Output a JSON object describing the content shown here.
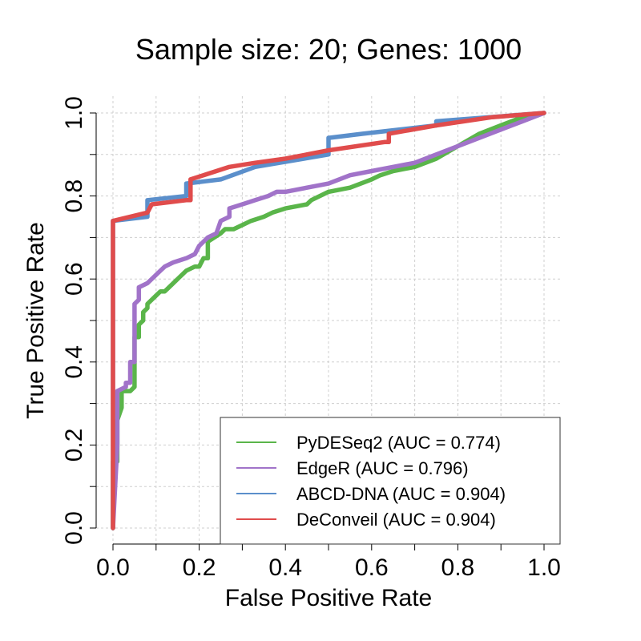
{
  "chart_data": {
    "type": "line",
    "title": "Sample size: 20; Genes: 1000",
    "xlabel": "False Positive Rate",
    "ylabel": "True Positive Rate",
    "xlim": [
      0,
      1
    ],
    "ylim": [
      0,
      1
    ],
    "xticks": [
      0.0,
      0.2,
      0.4,
      0.6,
      0.8,
      1.0
    ],
    "yticks": [
      0.0,
      0.2,
      0.4,
      0.6,
      0.8,
      1.0
    ],
    "xtick_labels": [
      "0.0",
      "0.2",
      "0.4",
      "0.6",
      "0.8",
      "1.0"
    ],
    "ytick_labels": [
      "0.0",
      "0.2",
      "0.4",
      "0.6",
      "0.8",
      "1.0"
    ],
    "grid": true,
    "legend_position": "bottom-right",
    "series": [
      {
        "name": "PyDESeq2 (AUC = 0.774)",
        "color": "#5ab54a",
        "points": [
          [
            0,
            0
          ],
          [
            0,
            0.16
          ],
          [
            0.01,
            0.16
          ],
          [
            0.01,
            0.26
          ],
          [
            0.02,
            0.29
          ],
          [
            0.02,
            0.33
          ],
          [
            0.04,
            0.33
          ],
          [
            0.05,
            0.34
          ],
          [
            0.05,
            0.38
          ],
          [
            0.05,
            0.46
          ],
          [
            0.06,
            0.46
          ],
          [
            0.06,
            0.49
          ],
          [
            0.07,
            0.5
          ],
          [
            0.07,
            0.52
          ],
          [
            0.08,
            0.53
          ],
          [
            0.08,
            0.54
          ],
          [
            0.1,
            0.56
          ],
          [
            0.11,
            0.57
          ],
          [
            0.12,
            0.57
          ],
          [
            0.13,
            0.58
          ],
          [
            0.15,
            0.6
          ],
          [
            0.17,
            0.62
          ],
          [
            0.19,
            0.63
          ],
          [
            0.2,
            0.63
          ],
          [
            0.21,
            0.65
          ],
          [
            0.22,
            0.65
          ],
          [
            0.22,
            0.69
          ],
          [
            0.25,
            0.71
          ],
          [
            0.26,
            0.72
          ],
          [
            0.28,
            0.72
          ],
          [
            0.3,
            0.73
          ],
          [
            0.32,
            0.74
          ],
          [
            0.35,
            0.75
          ],
          [
            0.37,
            0.76
          ],
          [
            0.4,
            0.77
          ],
          [
            0.45,
            0.78
          ],
          [
            0.46,
            0.79
          ],
          [
            0.5,
            0.81
          ],
          [
            0.55,
            0.82
          ],
          [
            0.6,
            0.84
          ],
          [
            0.62,
            0.85
          ],
          [
            0.65,
            0.86
          ],
          [
            0.7,
            0.87
          ],
          [
            0.75,
            0.89
          ],
          [
            0.8,
            0.92
          ],
          [
            0.85,
            0.95
          ],
          [
            0.9,
            0.97
          ],
          [
            0.95,
            0.99
          ],
          [
            1,
            1
          ]
        ]
      },
      {
        "name": "EdgeR (AUC = 0.796)",
        "color": "#a173c9",
        "points": [
          [
            0,
            0
          ],
          [
            0.01,
            0.2
          ],
          [
            0.01,
            0.33
          ],
          [
            0.03,
            0.34
          ],
          [
            0.03,
            0.35
          ],
          [
            0.04,
            0.35
          ],
          [
            0.04,
            0.4
          ],
          [
            0.05,
            0.4
          ],
          [
            0.05,
            0.54
          ],
          [
            0.06,
            0.55
          ],
          [
            0.06,
            0.58
          ],
          [
            0.08,
            0.59
          ],
          [
            0.09,
            0.6
          ],
          [
            0.11,
            0.62
          ],
          [
            0.12,
            0.63
          ],
          [
            0.14,
            0.64
          ],
          [
            0.17,
            0.65
          ],
          [
            0.19,
            0.66
          ],
          [
            0.2,
            0.68
          ],
          [
            0.22,
            0.7
          ],
          [
            0.24,
            0.71
          ],
          [
            0.25,
            0.74
          ],
          [
            0.27,
            0.75
          ],
          [
            0.27,
            0.77
          ],
          [
            0.3,
            0.78
          ],
          [
            0.33,
            0.79
          ],
          [
            0.36,
            0.8
          ],
          [
            0.38,
            0.81
          ],
          [
            0.4,
            0.81
          ],
          [
            0.45,
            0.82
          ],
          [
            0.5,
            0.83
          ],
          [
            0.55,
            0.85
          ],
          [
            0.6,
            0.86
          ],
          [
            0.65,
            0.87
          ],
          [
            0.7,
            0.88
          ],
          [
            0.75,
            0.9
          ],
          [
            0.8,
            0.92
          ],
          [
            0.85,
            0.94
          ],
          [
            0.9,
            0.96
          ],
          [
            0.95,
            0.98
          ],
          [
            1,
            1
          ]
        ]
      },
      {
        "name": "ABCD-DNA (AUC = 0.904)",
        "color": "#5b8fcb",
        "points": [
          [
            0,
            0
          ],
          [
            0,
            0.74
          ],
          [
            0.08,
            0.75
          ],
          [
            0.08,
            0.79
          ],
          [
            0.17,
            0.8
          ],
          [
            0.17,
            0.83
          ],
          [
            0.25,
            0.84
          ],
          [
            0.33,
            0.87
          ],
          [
            0.5,
            0.9
          ],
          [
            0.5,
            0.94
          ],
          [
            0.58,
            0.95
          ],
          [
            0.75,
            0.97
          ],
          [
            0.75,
            0.98
          ],
          [
            1,
            1
          ]
        ]
      },
      {
        "name": "DeConveil (AUC = 0.904)",
        "color": "#e04c4c",
        "points": [
          [
            0,
            0
          ],
          [
            0,
            0.74
          ],
          [
            0.08,
            0.76
          ],
          [
            0.09,
            0.78
          ],
          [
            0.17,
            0.79
          ],
          [
            0.18,
            0.79
          ],
          [
            0.18,
            0.84
          ],
          [
            0.27,
            0.87
          ],
          [
            0.33,
            0.88
          ],
          [
            0.4,
            0.89
          ],
          [
            0.5,
            0.91
          ],
          [
            0.63,
            0.93
          ],
          [
            0.64,
            0.93
          ],
          [
            0.64,
            0.95
          ],
          [
            0.75,
            0.97
          ],
          [
            0.88,
            0.99
          ],
          [
            1,
            1
          ]
        ]
      }
    ]
  }
}
